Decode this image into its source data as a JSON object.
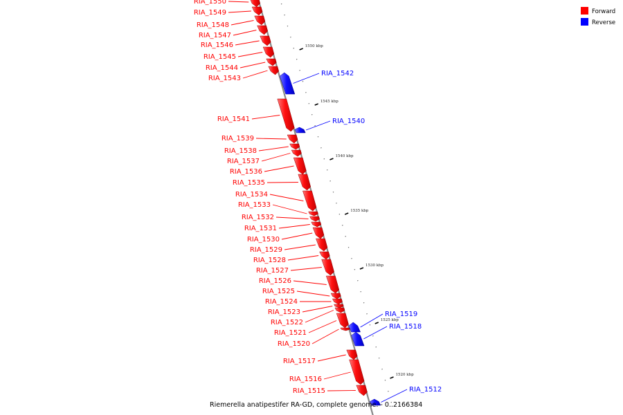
{
  "caption": {
    "text": "Riemerella anatipestifer RA-GD, complete genome. - 0..2166384"
  },
  "legend": {
    "entries": [
      {
        "label": "Forward",
        "color": "#ff0000"
      },
      {
        "label": "Reverse",
        "color": "#0000ff"
      }
    ]
  },
  "colors": {
    "forward": "#ff0000",
    "reverse": "#0000ff",
    "backbone": "#888888"
  },
  "ruler": {
    "ticks": [
      "1550 kbp",
      "1545 kbp",
      "1540 kbp",
      "1535 kbp",
      "1530 kbp",
      "1525 kbp",
      "1520 kbp"
    ]
  },
  "genes": [
    {
      "label": "RIA_1550",
      "strand": "forward"
    },
    {
      "label": "RIA_1549",
      "strand": "forward"
    },
    {
      "label": "RIA_1548",
      "strand": "forward"
    },
    {
      "label": "RIA_1547",
      "strand": "forward"
    },
    {
      "label": "RIA_1546",
      "strand": "forward"
    },
    {
      "label": "RIA_1545",
      "strand": "forward"
    },
    {
      "label": "RIA_1544",
      "strand": "forward"
    },
    {
      "label": "RIA_1543",
      "strand": "forward"
    },
    {
      "label": "RIA_1542",
      "strand": "reverse"
    },
    {
      "label": "RIA_1541",
      "strand": "forward"
    },
    {
      "label": "RIA_1540",
      "strand": "reverse"
    },
    {
      "label": "RIA_1539",
      "strand": "forward"
    },
    {
      "label": "RIA_1538",
      "strand": "forward"
    },
    {
      "label": "RIA_1537",
      "strand": "forward"
    },
    {
      "label": "RIA_1536",
      "strand": "forward"
    },
    {
      "label": "RIA_1535",
      "strand": "forward"
    },
    {
      "label": "RIA_1534",
      "strand": "forward"
    },
    {
      "label": "RIA_1533",
      "strand": "forward"
    },
    {
      "label": "RIA_1532",
      "strand": "forward"
    },
    {
      "label": "RIA_1531",
      "strand": "forward"
    },
    {
      "label": "RIA_1530",
      "strand": "forward"
    },
    {
      "label": "RIA_1529",
      "strand": "forward"
    },
    {
      "label": "RIA_1528",
      "strand": "forward"
    },
    {
      "label": "RIA_1527",
      "strand": "forward"
    },
    {
      "label": "RIA_1526",
      "strand": "forward"
    },
    {
      "label": "RIA_1525",
      "strand": "forward"
    },
    {
      "label": "RIA_1524",
      "strand": "forward"
    },
    {
      "label": "RIA_1523",
      "strand": "forward"
    },
    {
      "label": "RIA_1522",
      "strand": "forward"
    },
    {
      "label": "RIA_1521",
      "strand": "forward"
    },
    {
      "label": "RIA_1520",
      "strand": "forward"
    },
    {
      "label": "RIA_1519",
      "strand": "reverse"
    },
    {
      "label": "RIA_1518",
      "strand": "reverse"
    },
    {
      "label": "RIA_1517",
      "strand": "forward"
    },
    {
      "label": "RIA_1516",
      "strand": "forward"
    },
    {
      "label": "RIA_1515",
      "strand": "forward"
    },
    {
      "label": "RIA_1512",
      "strand": "reverse"
    }
  ]
}
